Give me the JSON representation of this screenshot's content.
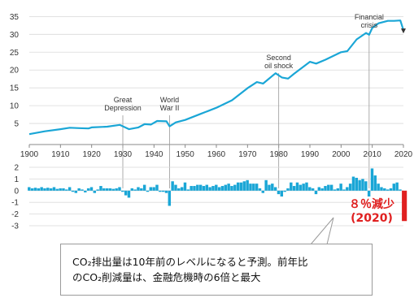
{
  "chart_data": [
    {
      "type": "line",
      "x_ticks": [
        1900,
        1910,
        1920,
        1930,
        1940,
        1950,
        1960,
        1970,
        1980,
        1990,
        2000,
        2010,
        2020
      ],
      "y_ticks": [
        5,
        10,
        15,
        20,
        25,
        30,
        35
      ],
      "ylim": [
        0,
        36
      ],
      "xlim": [
        1900,
        2020
      ],
      "grid": true,
      "series": [
        {
          "x": [
            1900,
            1905,
            1910,
            1913,
            1916,
            1919,
            1920,
            1925,
            1929,
            1932,
            1935,
            1937,
            1939,
            1941,
            1944,
            1945,
            1947,
            1950,
            1955,
            1960,
            1965,
            1970,
            1973,
            1975,
            1979,
            1981,
            1983,
            1985,
            1990,
            1992,
            1995,
            2000,
            2002,
            2005,
            2008,
            2009,
            2010,
            2012,
            2015,
            2017,
            2019,
            2020
          ],
          "y": [
            2.0,
            2.8,
            3.4,
            3.8,
            3.7,
            3.6,
            3.9,
            4.1,
            4.6,
            3.4,
            3.9,
            4.8,
            4.7,
            5.7,
            5.6,
            4.2,
            5.3,
            6.0,
            7.7,
            9.4,
            11.5,
            14.9,
            16.6,
            16.2,
            19.1,
            17.9,
            17.6,
            19.0,
            22.3,
            21.8,
            22.9,
            25.0,
            25.3,
            28.6,
            30.4,
            29.9,
            31.8,
            33.1,
            33.8,
            33.8,
            33.9,
            31.2
          ]
        }
      ],
      "annotations": [
        {
          "x": 1930,
          "lines": [
            "Great",
            "Depression"
          ]
        },
        {
          "x": 1945,
          "lines": [
            "World",
            "War II"
          ]
        },
        {
          "x": 1980,
          "lines": [
            "Second",
            "oil shock"
          ]
        },
        {
          "x": 2009,
          "lines": [
            "Financial",
            "crisis"
          ]
        }
      ],
      "colors": {
        "line": "#1aa6d6",
        "grid": "#d9d9d9",
        "annotation_line": "#999999"
      }
    },
    {
      "type": "bar",
      "y_ticks": [
        2,
        1,
        0,
        -1,
        -2,
        -3
      ],
      "ylim": [
        -3,
        2
      ],
      "xlim": [
        1900,
        2020
      ],
      "years_from": 1900,
      "values": [
        0.3,
        0.2,
        0.25,
        0.2,
        0.3,
        0.2,
        0.25,
        0.2,
        0.3,
        0.15,
        0.2,
        0.2,
        0.1,
        0.3,
        -0.1,
        -0.2,
        0.2,
        0.1,
        -0.15,
        0.2,
        0.3,
        -0.2,
        0.1,
        0.4,
        0.2,
        0.2,
        0.2,
        0.15,
        0.2,
        0.3,
        -0.1,
        -0.4,
        -0.6,
        0.2,
        0.1,
        0.3,
        0.2,
        0.5,
        -0.1,
        0.3,
        0.3,
        0.5,
        -0.1,
        -0.1,
        -0.2,
        -1.3,
        0.8,
        0.5,
        0.2,
        0.3,
        0.7,
        0.1,
        0.4,
        0.4,
        0.5,
        0.5,
        0.4,
        0.5,
        0.3,
        0.4,
        0.5,
        0.3,
        0.4,
        0.5,
        0.6,
        0.4,
        0.5,
        0.7,
        0.7,
        0.8,
        0.9,
        0.6,
        0.6,
        0.6,
        0.2,
        -0.2,
        0.9,
        0.5,
        0.6,
        0.3,
        -0.3,
        -0.5,
        -0.1,
        0.2,
        0.7,
        0.4,
        0.7,
        0.5,
        0.6,
        0.7,
        0.3,
        0.2,
        -0.3,
        0.3,
        0.2,
        0.4,
        0.5,
        0.5,
        0.1,
        0.2,
        0.6,
        0.1,
        0.3,
        0.6,
        1.2,
        1.1,
        0.9,
        1.0,
        0.8,
        -0.5,
        1.9,
        1.3,
        0.6,
        0.3,
        0.2,
        0.1,
        0.2,
        0.6,
        0.7,
        0.1
      ],
      "highlight": {
        "value": -2.6,
        "label_lines": [
          "８％減少",
          "(2020)"
        ],
        "color": "#e02020"
      },
      "colors": {
        "bar": "#1aa6d6",
        "grid": "#d9d9d9"
      }
    }
  ],
  "callout": {
    "line1": "CO₂排出量は10年前のレベルになると予測。前年比",
    "line2": "のCO₂削減量は、金融危機時の6倍と最大"
  }
}
